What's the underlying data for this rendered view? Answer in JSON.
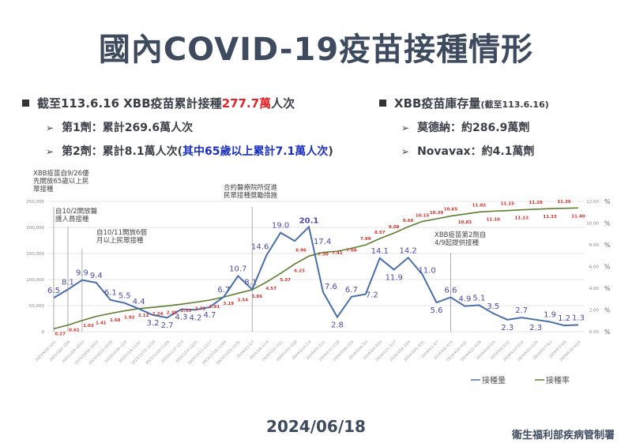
{
  "title": "國內COVID-19疫苗接種情形",
  "summary": {
    "main_prefix": "截至113.6.16 XBB疫苗累計接種",
    "main_value": "277.7萬",
    "main_suffix": "人次",
    "dose1": "第1劑：累計269.6萬人次",
    "dose2_prefix": "第2劑：累計8.1萬人次(",
    "dose2_highlight": "其中65歲以上累計7.1萬人次",
    "dose2_suffix": ")"
  },
  "stock": {
    "heading": "XBB疫苗庫存量",
    "heading_note": "(截至113.6.16)",
    "moderna": "莫德納：約286.9萬劑",
    "novavax": "Novavax：約4.1萬劑"
  },
  "chart_data": {
    "type": "line",
    "categories": [
      "2023/9/26-10/1",
      "2023/10/2-10/8",
      "2023/10/9-10/15",
      "2023/10/16-10/22",
      "2023/10/23-10/29",
      "2023/10/30-11/5",
      "2023/11/6-11/12",
      "2023/11/13-11/19",
      "2023/11/20-11/26",
      "2023/11/27-12/3",
      "2023/12/4-12/10",
      "2023/12/11-12/17",
      "2023/12/18-12/24",
      "2023/12/25-12/31",
      "2024/1/1-1/7",
      "2024/1/8-1/14",
      "2024/1/15-1/21",
      "2024/1/22-1/28",
      "2024/1/29-2/4",
      "2024/2/5-2/11",
      "2024/2/12-2/18",
      "2024/2/19-2/25",
      "2024/2/26-3/3",
      "2024/3/4-3/10",
      "2024/3/11-3/17",
      "2024/3/18-3/24",
      "2024/3/25-3/31",
      "2024/4/1-4/7",
      "2024/4/8-4/14",
      "2024/4/15-4/21",
      "2024/4/22-4/28",
      "2024/4/29-5/5",
      "2024/5/6-5/12",
      "2024/5/13-5/19",
      "2024/5/20-5/26",
      "2024/5/27-6/2",
      "2024/6/3-6/9",
      "2024/6/10-6/16"
    ],
    "series": [
      {
        "name": "接種量",
        "axis": "left",
        "color": "#4a6fa8",
        "unit_label": "萬",
        "values": [
          6.5,
          8.1,
          9.9,
          9.4,
          6.1,
          5.5,
          4.4,
          3.2,
          2.7,
          4.3,
          4.2,
          4.7,
          6.7,
          10.7,
          8.1,
          14.6,
          19.0,
          17.4,
          20.1,
          7.6,
          2.8,
          6.7,
          7.2,
          14.1,
          11.9,
          14.2,
          11.0,
          5.6,
          6.6,
          4.9,
          5.1,
          3.5,
          2.3,
          2.7,
          2.3,
          1.9,
          1.2,
          1.3
        ]
      },
      {
        "name": "接種率",
        "axis": "right",
        "color": "#5e7d2e",
        "label_color": "#d0302a",
        "values": [
          0.27,
          0.61,
          1.03,
          1.41,
          1.68,
          1.92,
          2.12,
          2.24,
          2.38,
          2.53,
          2.71,
          2.91,
          3.19,
          3.54,
          3.86,
          4.57,
          5.37,
          6.23,
          6.96,
          7.3,
          7.41,
          7.68,
          7.99,
          8.57,
          9.08,
          9.66,
          10.15,
          10.39,
          10.65,
          10.83,
          11.02,
          11.1,
          11.15,
          11.22,
          11.28,
          11.33,
          11.36,
          11.4
        ]
      }
    ],
    "y_left": {
      "range": [
        0,
        250000
      ],
      "ticks": [
        "0",
        "50,000",
        "100,000",
        "150,000",
        "200,000",
        "250,000"
      ]
    },
    "y_right": {
      "range": [
        0,
        12
      ],
      "ticks": [
        "0.00",
        "2.00",
        "4.00",
        "6.00",
        "8.00",
        "10.00",
        "12.00"
      ],
      "unit": "%"
    },
    "grid": true,
    "legend_position": "bottom-right",
    "annotations": [
      {
        "text": [
          "XBB疫苗自9/26優",
          "先開放65歲以上民",
          "眾接種"
        ],
        "at_index": 0
      },
      {
        "text": [
          "自10/2開放醫",
          "護人員接種"
        ],
        "at_index": 1
      },
      {
        "text": [
          "自10/11開放6個",
          "月以上民眾接種"
        ],
        "at_index": 2
      },
      {
        "text": [
          "合約醫療院所促進",
          "民眾接種獎勵措施"
        ],
        "at_index": 14
      },
      {
        "text": [
          "XBB疫苗第2劑自",
          "4/9起提供接種"
        ],
        "at_index": 28
      }
    ]
  },
  "footer": {
    "date": "2024/06/18",
    "source": "衛生福利部疾病管制署"
  }
}
